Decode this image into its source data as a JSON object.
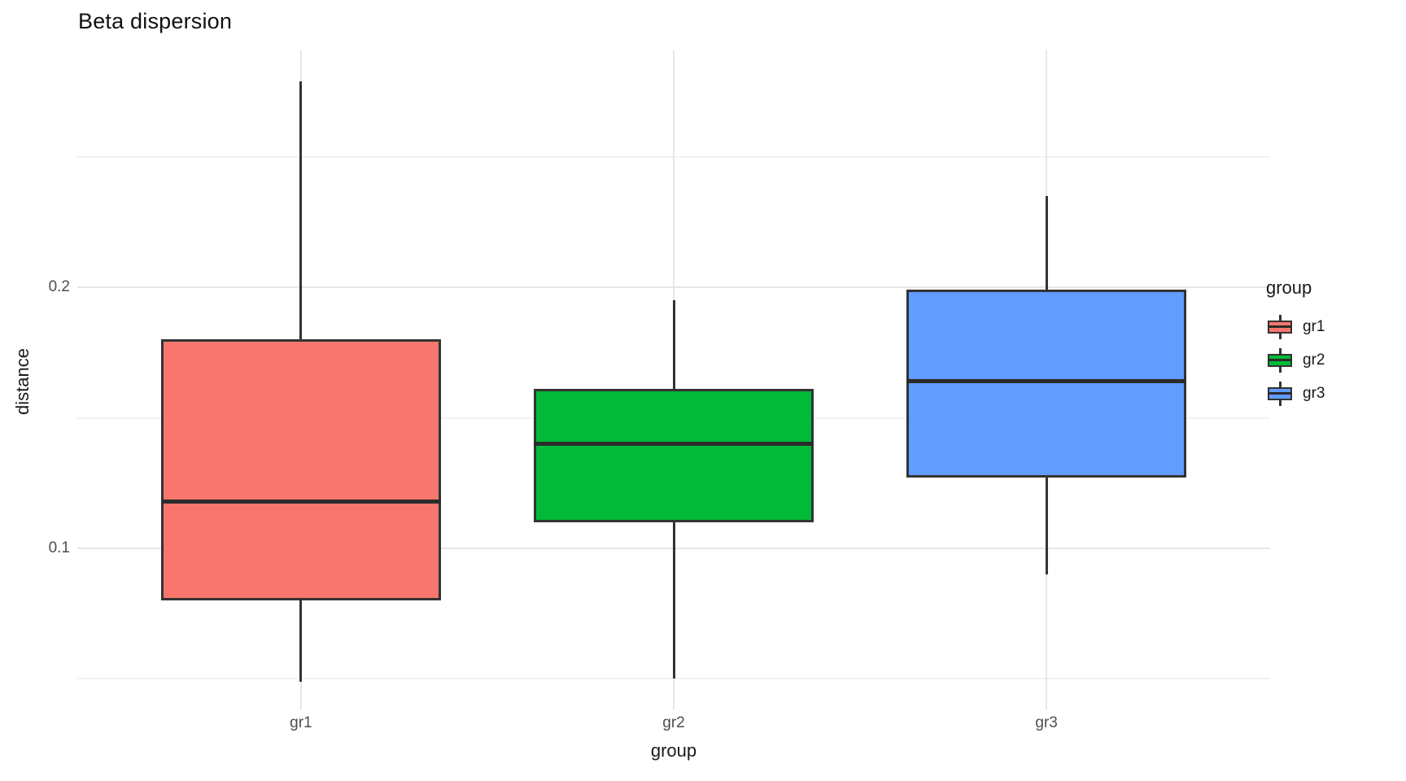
{
  "chart_data": {
    "type": "boxplot",
    "title": "Beta dispersion",
    "xlabel": "group",
    "ylabel": "distance",
    "categories": [
      "gr1",
      "gr2",
      "gr3"
    ],
    "series": [
      {
        "name": "gr1",
        "color": "#F8766D",
        "min": 0.049,
        "q1": 0.08,
        "median": 0.118,
        "q3": 0.18,
        "max": 0.279
      },
      {
        "name": "gr2",
        "color": "#00BA38",
        "min": 0.05,
        "q1": 0.11,
        "median": 0.14,
        "q3": 0.161,
        "max": 0.195
      },
      {
        "name": "gr3",
        "color": "#619CFF",
        "min": 0.09,
        "q1": 0.127,
        "median": 0.164,
        "q3": 0.199,
        "max": 0.235
      }
    ],
    "yticks": [
      {
        "value": 0.2,
        "label": "0.2"
      },
      {
        "value": 0.1,
        "label": "0.1"
      }
    ],
    "minor_yticks": [
      0.25,
      0.15,
      0.05
    ],
    "ylim": [
      0.0383,
      0.2907
    ],
    "grid": true,
    "legend": {
      "title": "group",
      "entries": [
        "gr1",
        "gr2",
        "gr3"
      ],
      "position": "right"
    }
  },
  "colors": {
    "background": "#ffffff",
    "grid_major": "#e6e6e6",
    "grid_minor": "#f2f2f2",
    "box_border": "#333333",
    "median": "#2b2b2b",
    "tick_text": "#4d4d4d",
    "axis_text": "#1a1a1a"
  }
}
